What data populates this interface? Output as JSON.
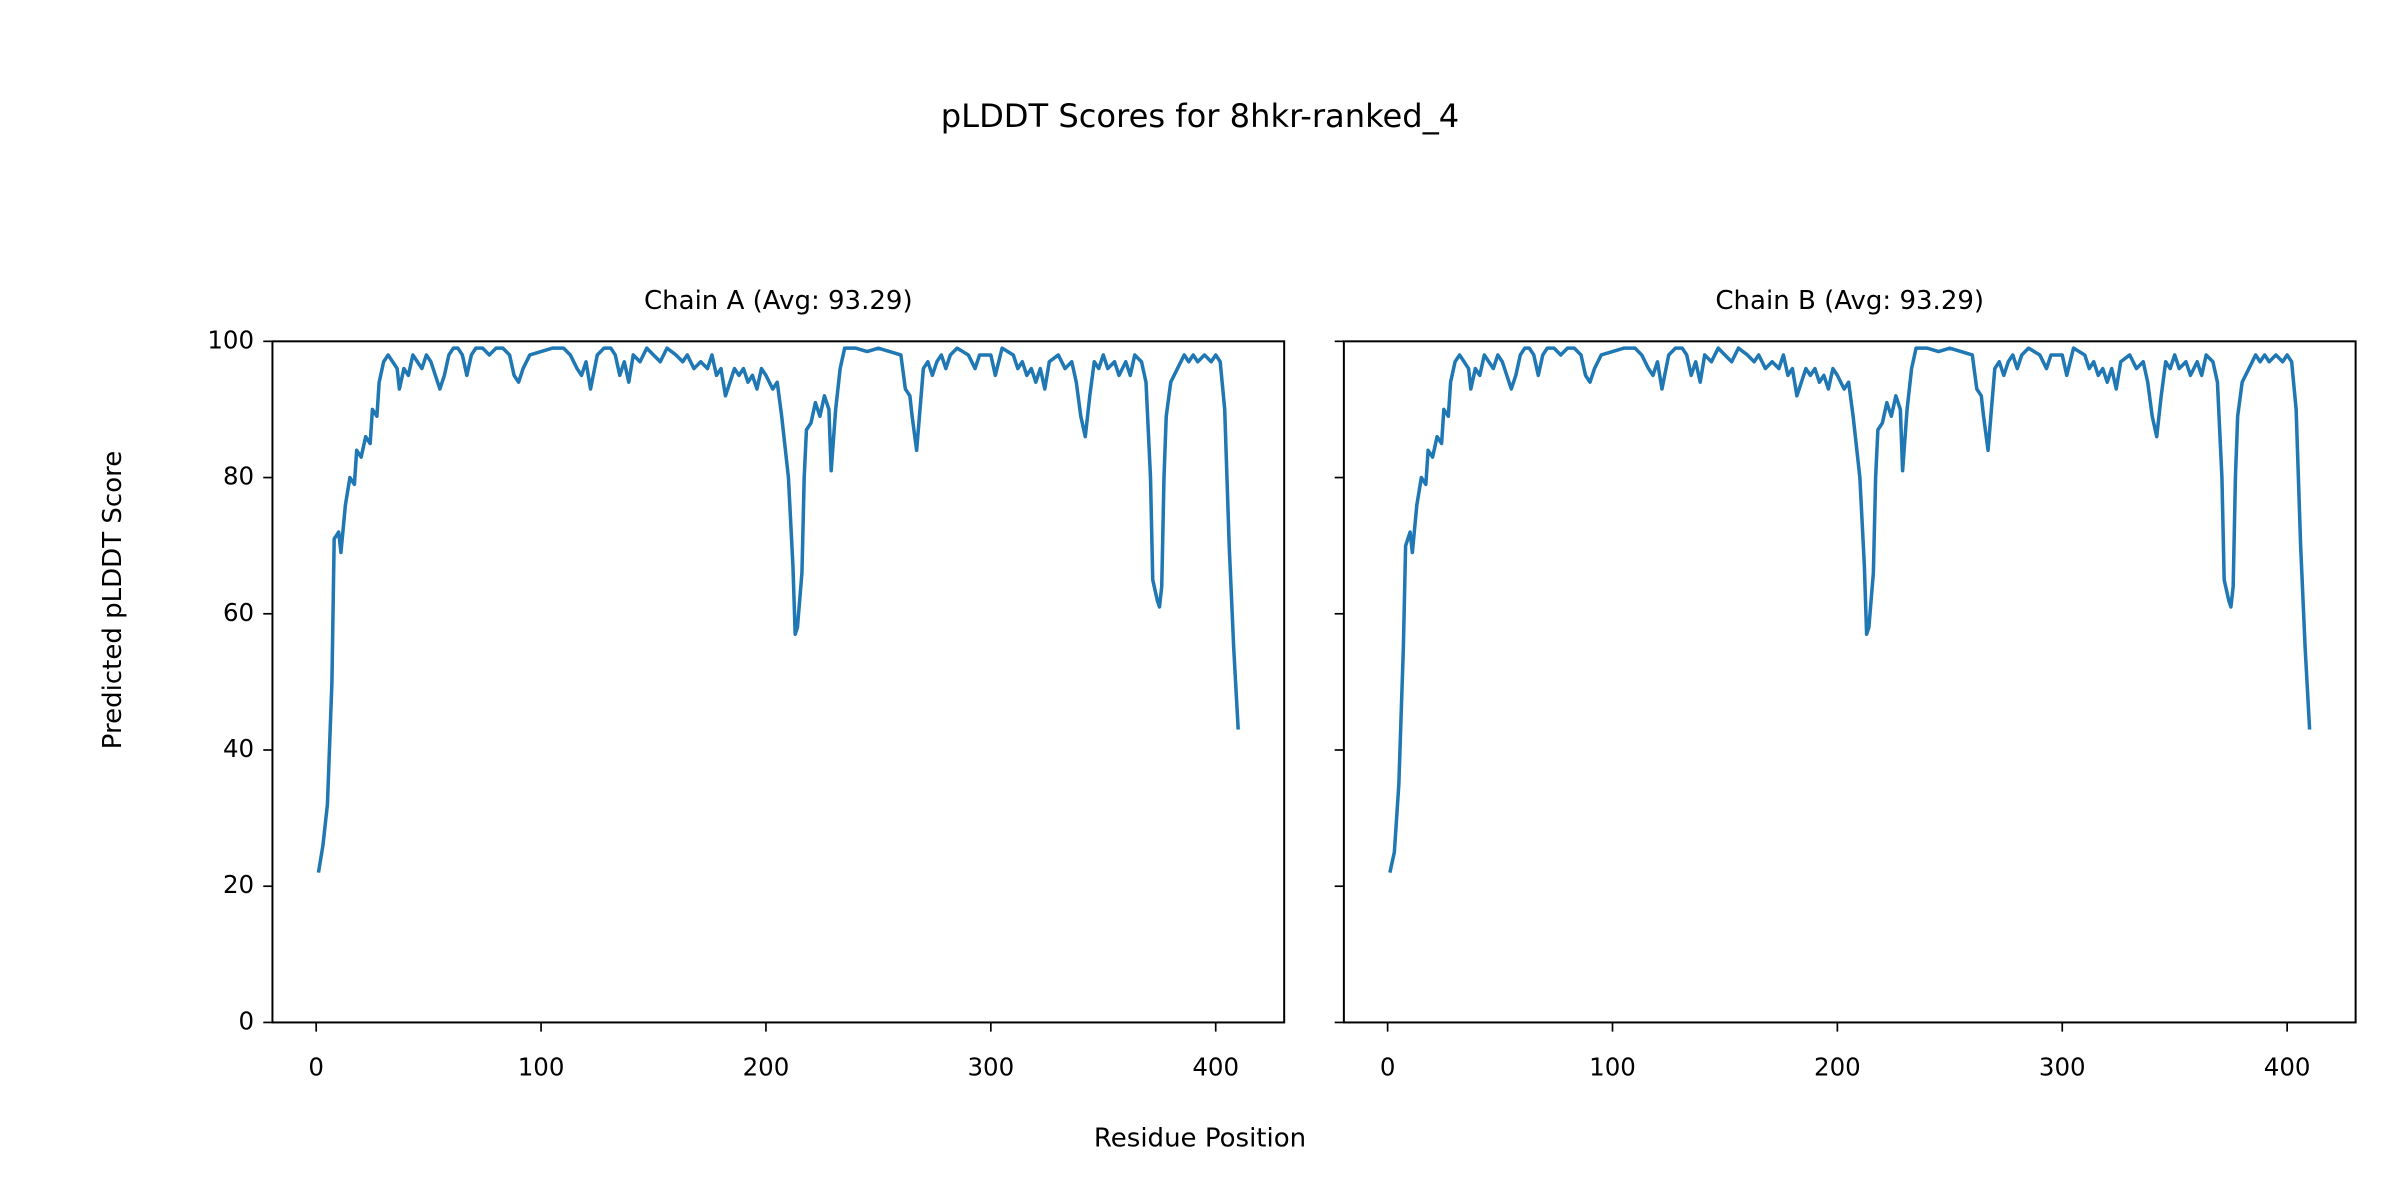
{
  "title": "pLDDT Scores for 8hkr-ranked_4",
  "x_label": "Residue Position",
  "y_label": "Predicted pLDDT Score",
  "chart_data": [
    {
      "type": "line",
      "title": "Chain A (Avg: 93.29)",
      "x": [
        1,
        3,
        5,
        7,
        8,
        10,
        11,
        13,
        15,
        17,
        18,
        20,
        22,
        24,
        25,
        27,
        28,
        30,
        32,
        34,
        36,
        37,
        39,
        41,
        43,
        45,
        47,
        49,
        51,
        53,
        55,
        57,
        59,
        61,
        63,
        65,
        67,
        69,
        71,
        74,
        77,
        80,
        83,
        86,
        88,
        90,
        92,
        95,
        100,
        105,
        110,
        113,
        116,
        118,
        120,
        122,
        125,
        128,
        131,
        133,
        135,
        137,
        139,
        141,
        144,
        147,
        150,
        153,
        156,
        160,
        163,
        165,
        168,
        171,
        174,
        176,
        178,
        180,
        182,
        184,
        186,
        188,
        190,
        192,
        194,
        196,
        198,
        200,
        203,
        205,
        207,
        210,
        212,
        213,
        214,
        216,
        217,
        218,
        220,
        222,
        224,
        226,
        228,
        229,
        231,
        233,
        235,
        240,
        245,
        250,
        255,
        260,
        262,
        264,
        265,
        267,
        268,
        270,
        272,
        274,
        276,
        278,
        280,
        282,
        285,
        290,
        293,
        295,
        300,
        302,
        305,
        310,
        312,
        314,
        316,
        318,
        320,
        322,
        324,
        326,
        330,
        333,
        336,
        338,
        340,
        342,
        344,
        346,
        348,
        350,
        352,
        355,
        357,
        360,
        362,
        364,
        367,
        369,
        371,
        372,
        374,
        375,
        376,
        377,
        378,
        380,
        383,
        386,
        388,
        390,
        392,
        395,
        398,
        400,
        402,
        404,
        406,
        408,
        410
      ],
      "series": [
        {
          "color": "#1f77b4",
          "values": [
            22,
            26,
            32,
            50,
            71,
            72,
            69,
            76,
            80,
            79,
            84,
            83,
            86,
            85,
            90,
            89,
            94,
            97,
            98,
            97,
            96,
            93,
            96,
            95,
            98,
            97,
            96,
            98,
            97,
            95,
            93,
            95,
            98,
            99,
            99,
            98,
            95,
            98,
            99,
            99,
            98,
            99,
            99,
            98,
            95,
            94,
            96,
            98,
            98.5,
            99,
            99,
            98,
            96,
            95,
            97,
            93,
            98,
            99,
            99,
            98,
            95,
            97,
            94,
            98,
            97,
            99,
            98,
            97,
            99,
            98,
            97,
            98,
            96,
            97,
            96,
            98,
            95,
            96,
            92,
            94,
            96,
            95,
            96,
            94,
            95,
            93,
            96,
            95,
            93,
            94,
            89,
            80,
            67,
            57,
            58,
            66,
            80,
            87,
            88,
            91,
            89,
            92,
            90,
            81,
            90,
            96,
            99,
            99,
            98.5,
            99,
            98.5,
            98,
            93,
            92,
            89,
            84,
            88,
            96,
            97,
            95,
            97,
            98,
            96,
            98,
            99,
            98,
            96,
            98,
            98,
            95,
            99,
            98,
            96,
            97,
            95,
            96,
            94,
            96,
            93,
            97,
            98,
            96,
            97,
            94,
            89,
            86,
            92,
            97,
            96,
            98,
            96,
            97,
            95,
            97,
            95,
            98,
            97,
            94,
            80,
            65,
            62,
            61,
            64,
            80,
            89,
            94,
            96,
            98,
            97,
            98,
            97,
            98,
            97,
            98,
            97,
            90,
            70,
            55,
            43
          ]
        }
      ],
      "xlim": [
        -19.45,
        430.45
      ],
      "ylim": [
        0,
        100
      ],
      "xticks": [
        0,
        100,
        200,
        300,
        400
      ],
      "yticks": [
        0,
        20,
        40,
        60,
        80,
        100
      ]
    },
    {
      "type": "line",
      "title": "Chain B (Avg: 93.29)",
      "x": [
        1,
        3,
        5,
        7,
        8,
        10,
        11,
        13,
        15,
        17,
        18,
        20,
        22,
        24,
        25,
        27,
        28,
        30,
        32,
        34,
        36,
        37,
        39,
        41,
        43,
        45,
        47,
        49,
        51,
        53,
        55,
        57,
        59,
        61,
        63,
        65,
        67,
        69,
        71,
        74,
        77,
        80,
        83,
        86,
        88,
        90,
        92,
        95,
        100,
        105,
        110,
        113,
        116,
        118,
        120,
        122,
        125,
        128,
        131,
        133,
        135,
        137,
        139,
        141,
        144,
        147,
        150,
        153,
        156,
        160,
        163,
        165,
        168,
        171,
        174,
        176,
        178,
        180,
        182,
        184,
        186,
        188,
        190,
        192,
        194,
        196,
        198,
        200,
        203,
        205,
        207,
        210,
        212,
        213,
        214,
        216,
        217,
        218,
        220,
        222,
        224,
        226,
        228,
        229,
        231,
        233,
        235,
        240,
        245,
        250,
        255,
        260,
        262,
        264,
        265,
        267,
        268,
        270,
        272,
        274,
        276,
        278,
        280,
        282,
        285,
        290,
        293,
        295,
        300,
        302,
        305,
        310,
        312,
        314,
        316,
        318,
        320,
        322,
        324,
        326,
        330,
        333,
        336,
        338,
        340,
        342,
        344,
        346,
        348,
        350,
        352,
        355,
        357,
        360,
        362,
        364,
        367,
        369,
        371,
        372,
        374,
        375,
        376,
        377,
        378,
        380,
        383,
        386,
        388,
        390,
        392,
        395,
        398,
        400,
        402,
        404,
        406,
        408,
        410
      ],
      "series": [
        {
          "color": "#1f77b4",
          "values": [
            22,
            25,
            35,
            55,
            70,
            72,
            69,
            76,
            80,
            79,
            84,
            83,
            86,
            85,
            90,
            89,
            94,
            97,
            98,
            97,
            96,
            93,
            96,
            95,
            98,
            97,
            96,
            98,
            97,
            95,
            93,
            95,
            98,
            99,
            99,
            98,
            95,
            98,
            99,
            99,
            98,
            99,
            99,
            98,
            95,
            94,
            96,
            98,
            98.5,
            99,
            99,
            98,
            96,
            95,
            97,
            93,
            98,
            99,
            99,
            98,
            95,
            97,
            94,
            98,
            97,
            99,
            98,
            97,
            99,
            98,
            97,
            98,
            96,
            97,
            96,
            98,
            95,
            96,
            92,
            94,
            96,
            95,
            96,
            94,
            95,
            93,
            96,
            95,
            93,
            94,
            89,
            80,
            67,
            57,
            58,
            66,
            80,
            87,
            88,
            91,
            89,
            92,
            90,
            81,
            90,
            96,
            99,
            99,
            98.5,
            99,
            98.5,
            98,
            93,
            92,
            89,
            84,
            88,
            96,
            97,
            95,
            97,
            98,
            96,
            98,
            99,
            98,
            96,
            98,
            98,
            95,
            99,
            98,
            96,
            97,
            95,
            96,
            94,
            96,
            93,
            97,
            98,
            96,
            97,
            94,
            89,
            86,
            92,
            97,
            96,
            98,
            96,
            97,
            95,
            97,
            95,
            98,
            97,
            94,
            80,
            65,
            62,
            61,
            64,
            80,
            89,
            94,
            96,
            98,
            97,
            98,
            97,
            98,
            97,
            98,
            97,
            90,
            70,
            55,
            43
          ]
        }
      ],
      "xlim": [
        -19.45,
        430.45
      ],
      "ylim": [
        0,
        100
      ],
      "xticks": [
        0,
        100,
        200,
        300,
        400
      ]
    }
  ]
}
